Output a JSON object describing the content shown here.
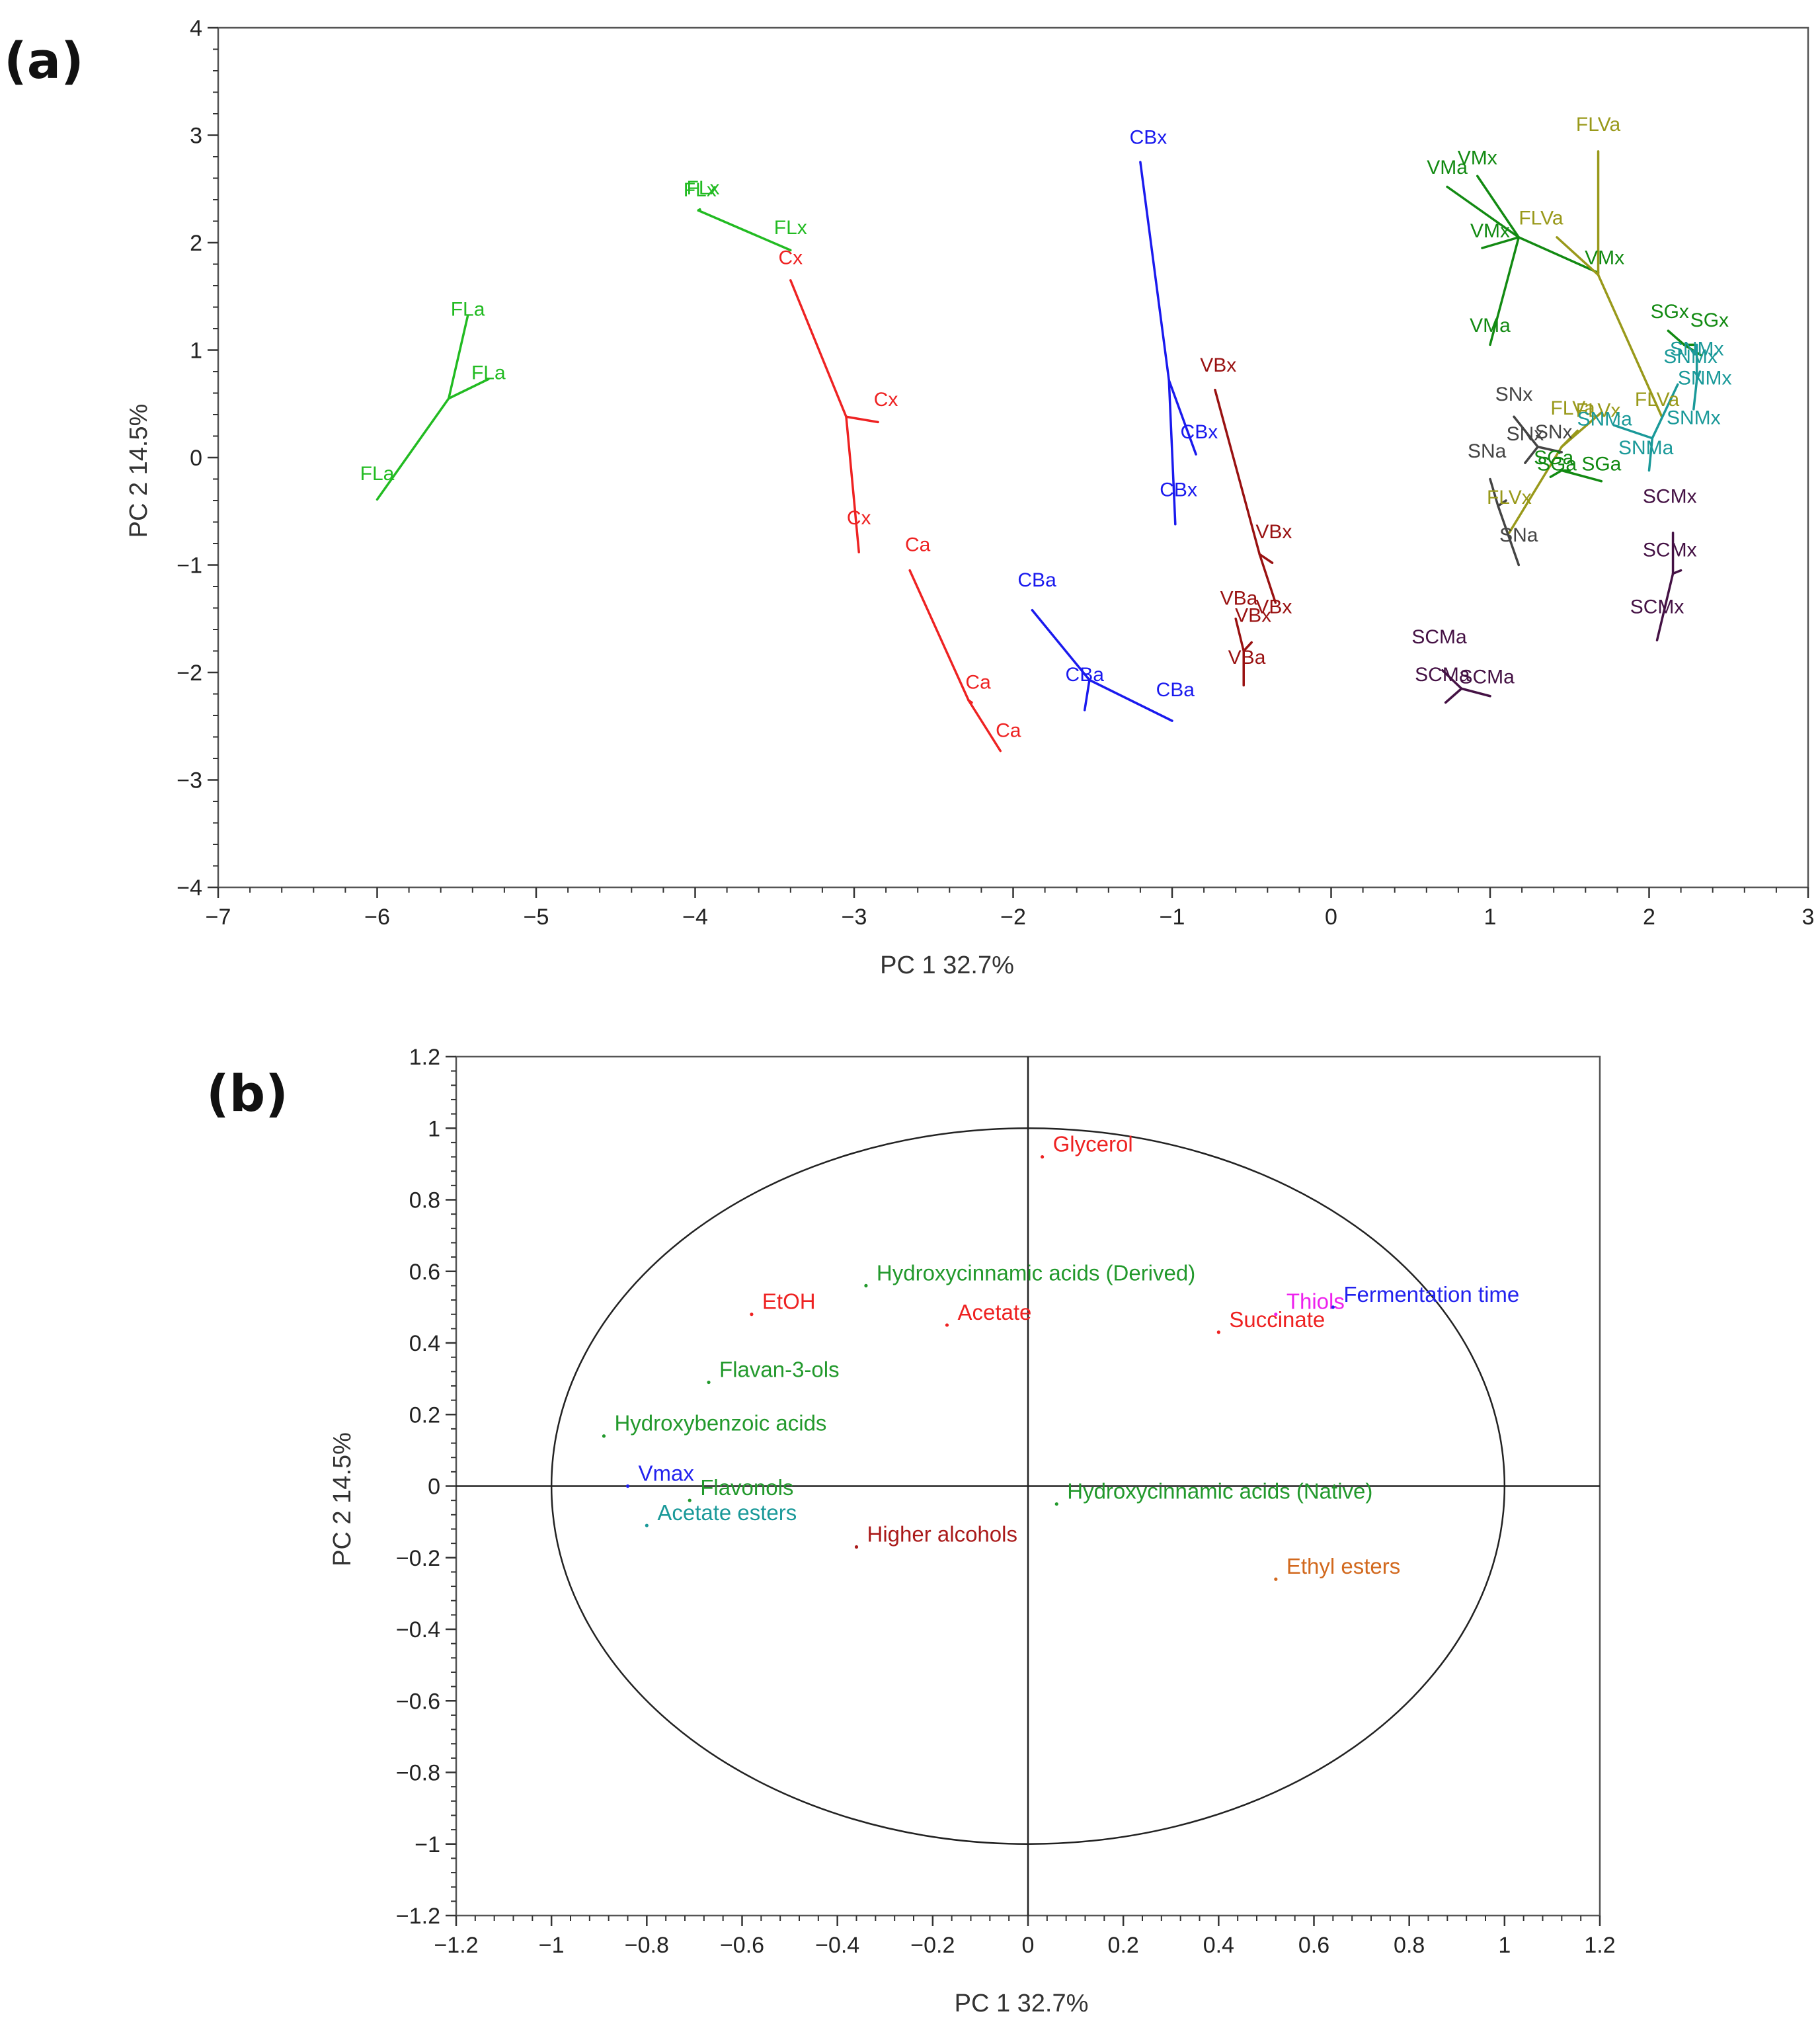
{
  "chart_data": [
    {
      "panel": "(a)",
      "type": "scatter",
      "title": "",
      "xlabel": "PC 1  32.7%",
      "ylabel": "PC 2  14.5%",
      "xlim": [
        -7,
        3
      ],
      "ylim": [
        -4,
        4
      ],
      "xticks": [
        -7,
        -6,
        -5,
        -4,
        -3,
        -2,
        -1,
        0,
        1,
        2,
        3
      ],
      "yticks": [
        -4,
        -3,
        -2,
        -1,
        0,
        1,
        2,
        3,
        4
      ],
      "groups": [
        {
          "color": "#22bb22",
          "center": [
            -5.55,
            0.55
          ],
          "points": [
            {
              "label": "FLa",
              "x": -5.43,
              "y": 1.32
            },
            {
              "label": "FLa",
              "x": -5.3,
              "y": 0.73
            },
            {
              "label": "FLa",
              "x": -6.0,
              "y": -0.39
            }
          ]
        },
        {
          "color": "#22bb22",
          "center": [
            -3.98,
            2.3
          ],
          "points": [
            {
              "label": "FLx",
              "x": -3.97,
              "y": 2.31
            },
            {
              "label": "FLx",
              "x": -3.97,
              "y": 2.3
            },
            {
              "label": "FLx",
              "x": -3.4,
              "y": 1.93
            }
          ]
        },
        {
          "color": "#ee2222",
          "center": [
            -3.05,
            0.38
          ],
          "points": [
            {
              "label": "Cx",
              "x": -3.4,
              "y": 1.65
            },
            {
              "label": "Cx",
              "x": -2.85,
              "y": 0.33
            },
            {
              "label": "Cx",
              "x": -2.97,
              "y": -0.88
            }
          ]
        },
        {
          "color": "#ee2222",
          "center": [
            -2.28,
            -2.26
          ],
          "points": [
            {
              "label": "Ca",
              "x": -2.65,
              "y": -1.05
            },
            {
              "label": "Ca",
              "x": -2.26,
              "y": -2.28
            },
            {
              "label": "Ca",
              "x": -2.08,
              "y": -2.73
            }
          ]
        },
        {
          "color": "#1a1aee",
          "center": [
            -1.02,
            0.72
          ],
          "points": [
            {
              "label": "CBx",
              "x": -1.2,
              "y": 2.75
            },
            {
              "label": "CBx",
              "x": -0.85,
              "y": 0.03
            },
            {
              "label": "CBx",
              "x": -0.98,
              "y": -0.62
            }
          ]
        },
        {
          "color": "#1a1aee",
          "center": [
            -1.52,
            -2.07
          ],
          "points": [
            {
              "label": "CBa",
              "x": -1.88,
              "y": -1.42
            },
            {
              "label": "CBa",
              "x": -1.55,
              "y": -2.35
            },
            {
              "label": "CBa",
              "x": -1.0,
              "y": -2.45
            }
          ]
        },
        {
          "color": "#991111",
          "center": [
            -0.45,
            -0.9
          ],
          "points": [
            {
              "label": "VBx",
              "x": -0.73,
              "y": 0.63
            },
            {
              "label": "VBx",
              "x": -0.37,
              "y": -0.98
            },
            {
              "label": "VBx",
              "x": -0.35,
              "y": -1.35
            }
          ]
        },
        {
          "color": "#991111",
          "center": [
            -0.55,
            -1.8
          ],
          "points": [
            {
              "label": "VBa",
              "x": -0.6,
              "y": -1.5
            },
            {
              "label": "VBa",
              "x": -0.5,
              "y": -1.72
            },
            {
              "label": "VBa",
              "x": -0.55,
              "y": -2.12
            }
          ]
        },
        {
          "color": "#128a12",
          "center": [
            1.18,
            2.05
          ],
          "points": [
            {
              "label": "VMa",
              "x": 0.73,
              "y": 2.52
            },
            {
              "label": "VMa",
              "x": 1.0,
              "y": 1.05
            },
            {
              "label": "VMx",
              "x": 0.95,
              "y": 1.95
            },
            {
              "label": "VMx",
              "x": 0.92,
              "y": 2.62
            },
            {
              "label": "VMx",
              "x": 1.68,
              "y": 1.72
            }
          ]
        },
        {
          "color": "#99991a",
          "center": [
            1.68,
            1.7
          ],
          "points": [
            {
              "label": "FLVa",
              "x": 1.68,
              "y": 2.85
            },
            {
              "label": "FLVa",
              "x": 1.42,
              "y": 2.05
            },
            {
              "label": "FLVa",
              "x": 2.08,
              "y": 0.38
            }
          ]
        },
        {
          "color": "#99991a",
          "center": [
            1.45,
            0.1
          ],
          "points": [
            {
              "label": "FLVx",
              "x": 1.55,
              "y": 0.25
            },
            {
              "label": "FLVx",
              "x": 1.7,
              "y": 0.42
            },
            {
              "label": "FLVx",
              "x": 1.12,
              "y": -0.7
            }
          ]
        },
        {
          "color": "#128a12",
          "center": [
            2.22,
            1.05
          ],
          "points": [
            {
              "label": "SGx",
              "x": 2.12,
              "y": 1.18
            },
            {
              "label": "SGx",
              "x": 2.28,
              "y": 1.05
            },
            {
              "label": "SGx",
              "x": 2.33,
              "y": 0.95
            }
          ]
        },
        {
          "color": "#128a12",
          "center": [
            1.45,
            -0.12
          ],
          "points": [
            {
              "label": "SGa",
              "x": 1.38,
              "y": -0.18
            },
            {
              "label": "SGa",
              "x": 1.5,
              "y": -0.12
            },
            {
              "label": "SGa",
              "x": 1.7,
              "y": -0.22
            }
          ]
        },
        {
          "color": "#1a9999",
          "center": [
            2.3,
            0.72
          ],
          "points": [
            {
              "label": "SNMx",
              "x": 2.3,
              "y": 1.05
            },
            {
              "label": "SNMx",
              "x": 2.32,
              "y": 0.8
            },
            {
              "label": "SNMx",
              "x": 2.28,
              "y": 0.45
            }
          ]
        },
        {
          "color": "#1a9999",
          "center": [
            2.02,
            0.18
          ],
          "points": [
            {
              "label": "SNMa",
              "x": 1.78,
              "y": 0.3
            },
            {
              "label": "SNMa",
              "x": 2.18,
              "y": 0.68
            },
            {
              "label": "SNMa",
              "x": 2.0,
              "y": -0.12
            }
          ]
        },
        {
          "color": "#444444",
          "center": [
            1.3,
            0.1
          ],
          "points": [
            {
              "label": "SNx",
              "x": 1.15,
              "y": 0.38
            },
            {
              "label": "SNx",
              "x": 1.22,
              "y": -0.05
            },
            {
              "label": "SNx",
              "x": 1.45,
              "y": 0.05
            }
          ]
        },
        {
          "color": "#444444",
          "center": [
            1.05,
            -0.45
          ],
          "points": [
            {
              "label": "SNa",
              "x": 1.0,
              "y": -0.2
            },
            {
              "label": "SNa",
              "x": 1.1,
              "y": -0.4
            },
            {
              "label": "SNa",
              "x": 1.18,
              "y": -1.0
            }
          ]
        },
        {
          "color": "#441144",
          "center": [
            2.15,
            -1.08
          ],
          "points": [
            {
              "label": "SCMx",
              "x": 2.15,
              "y": -0.7
            },
            {
              "label": "SCMx",
              "x": 2.2,
              "y": -1.05
            },
            {
              "label": "SCMx",
              "x": 2.05,
              "y": -1.7
            }
          ]
        },
        {
          "color": "#441144",
          "center": [
            0.82,
            -2.15
          ],
          "points": [
            {
              "label": "SCMa",
              "x": 0.7,
              "y": -1.98
            },
            {
              "label": "SCMa",
              "x": 0.72,
              "y": -2.28
            },
            {
              "label": "SCMa",
              "x": 1.0,
              "y": -2.22
            }
          ]
        }
      ],
      "labels": [
        {
          "text": "FLa",
          "x": -5.43,
          "y": 1.32,
          "color": "#22bb22"
        },
        {
          "text": "FLa",
          "x": -5.3,
          "y": 0.73,
          "color": "#22bb22"
        },
        {
          "text": "FLa",
          "x": -6.0,
          "y": -0.21,
          "color": "#22bb22"
        },
        {
          "text": "FLx",
          "x": -3.97,
          "y": 2.43,
          "color": "#22bb22"
        },
        {
          "text": "FLx",
          "x": -3.95,
          "y": 2.45,
          "color": "#22bb22"
        },
        {
          "text": "FLx",
          "x": -3.4,
          "y": 2.08,
          "color": "#22bb22"
        },
        {
          "text": "Cx",
          "x": -3.4,
          "y": 1.8,
          "color": "#ee2222"
        },
        {
          "text": "Cx",
          "x": -2.8,
          "y": 0.48,
          "color": "#ee2222"
        },
        {
          "text": "Cx",
          "x": -2.97,
          "y": -0.62,
          "color": "#ee2222"
        },
        {
          "text": "Ca",
          "x": -2.6,
          "y": -0.87,
          "color": "#ee2222"
        },
        {
          "text": "Ca",
          "x": -2.22,
          "y": -2.15,
          "color": "#ee2222"
        },
        {
          "text": "Ca",
          "x": -2.03,
          "y": -2.6,
          "color": "#ee2222"
        },
        {
          "text": "CBx",
          "x": -1.15,
          "y": 2.92,
          "color": "#1a1aee"
        },
        {
          "text": "CBx",
          "x": -0.83,
          "y": 0.18,
          "color": "#1a1aee"
        },
        {
          "text": "CBx",
          "x": -0.96,
          "y": -0.36,
          "color": "#1a1aee"
        },
        {
          "text": "CBa",
          "x": -1.85,
          "y": -1.2,
          "color": "#1a1aee"
        },
        {
          "text": "CBa",
          "x": -1.55,
          "y": -2.08,
          "color": "#1a1aee"
        },
        {
          "text": "CBa",
          "x": -0.98,
          "y": -2.22,
          "color": "#1a1aee"
        },
        {
          "text": "VBx",
          "x": -0.71,
          "y": 0.8,
          "color": "#991111"
        },
        {
          "text": "VBx",
          "x": -0.36,
          "y": -0.75,
          "color": "#991111"
        },
        {
          "text": "VBx",
          "x": -0.36,
          "y": -1.45,
          "color": "#991111"
        },
        {
          "text": "VBa",
          "x": -0.58,
          "y": -1.37,
          "color": "#991111"
        },
        {
          "text": "VBx",
          "x": -0.49,
          "y": -1.53,
          "color": "#991111"
        },
        {
          "text": "VBa",
          "x": -0.53,
          "y": -1.92,
          "color": "#991111"
        },
        {
          "text": "VMa",
          "x": 0.73,
          "y": 2.64,
          "color": "#128a12"
        },
        {
          "text": "VMx",
          "x": 0.92,
          "y": 2.73,
          "color": "#128a12"
        },
        {
          "text": "FLVa",
          "x": 1.68,
          "y": 3.04,
          "color": "#99991a"
        },
        {
          "text": "FLVa",
          "x": 1.32,
          "y": 2.17,
          "color": "#99991a"
        },
        {
          "text": "VMx",
          "x": 1.0,
          "y": 2.05,
          "color": "#128a12"
        },
        {
          "text": "VMx",
          "x": 1.72,
          "y": 1.8,
          "color": "#128a12"
        },
        {
          "text": "VMa",
          "x": 1.0,
          "y": 1.17,
          "color": "#128a12"
        },
        {
          "text": "SGx",
          "x": 2.13,
          "y": 1.3,
          "color": "#128a12"
        },
        {
          "text": "SGx",
          "x": 2.38,
          "y": 1.22,
          "color": "#128a12"
        },
        {
          "text": "SNMx",
          "x": 2.3,
          "y": 0.95,
          "color": "#1a9999"
        },
        {
          "text": "SNMx",
          "x": 2.26,
          "y": 0.88,
          "color": "#1a9999"
        },
        {
          "text": "SNMx",
          "x": 2.35,
          "y": 0.68,
          "color": "#1a9999"
        },
        {
          "text": "SNMx",
          "x": 2.28,
          "y": 0.31,
          "color": "#1a9999"
        },
        {
          "text": "SNx",
          "x": 1.15,
          "y": 0.53,
          "color": "#444444"
        },
        {
          "text": "FLVa",
          "x": 1.52,
          "y": 0.4,
          "color": "#99991a"
        },
        {
          "text": "FLVx",
          "x": 1.68,
          "y": 0.38,
          "color": "#99991a"
        },
        {
          "text": "FLVa",
          "x": 2.05,
          "y": 0.48,
          "color": "#99991a"
        },
        {
          "text": "SNMa",
          "x": 1.72,
          "y": 0.3,
          "color": "#1a9999"
        },
        {
          "text": "SNx",
          "x": 1.4,
          "y": 0.18,
          "color": "#444444"
        },
        {
          "text": "SNx",
          "x": 1.22,
          "y": 0.16,
          "color": "#444444"
        },
        {
          "text": "SNMa",
          "x": 1.98,
          "y": 0.03,
          "color": "#1a9999"
        },
        {
          "text": "SNa",
          "x": 0.98,
          "y": 0.0,
          "color": "#444444"
        },
        {
          "text": "SGa",
          "x": 1.4,
          "y": -0.06,
          "color": "#128a12"
        },
        {
          "text": "SGa",
          "x": 1.42,
          "y": -0.12,
          "color": "#128a12"
        },
        {
          "text": "SGa",
          "x": 1.7,
          "y": -0.12,
          "color": "#128a12"
        },
        {
          "text": "FLVx",
          "x": 1.12,
          "y": -0.43,
          "color": "#99991a"
        },
        {
          "text": "SNa",
          "x": 1.18,
          "y": -0.78,
          "color": "#444444"
        },
        {
          "text": "SCMx",
          "x": 2.13,
          "y": -0.42,
          "color": "#441144"
        },
        {
          "text": "SCMx",
          "x": 2.13,
          "y": -0.92,
          "color": "#441144"
        },
        {
          "text": "SCMx",
          "x": 2.05,
          "y": -1.45,
          "color": "#441144"
        },
        {
          "text": "SCMa",
          "x": 0.68,
          "y": -1.73,
          "color": "#441144"
        },
        {
          "text": "SCMa",
          "x": 0.7,
          "y": -2.08,
          "color": "#441144"
        },
        {
          "text": "SCMa",
          "x": 0.98,
          "y": -2.1,
          "color": "#441144"
        }
      ]
    },
    {
      "panel": "(b)",
      "type": "scatter",
      "title": "",
      "xlabel": "PC 1  32.7%",
      "ylabel": "PC 2  14.5%",
      "xlim": [
        -1.2,
        1.2
      ],
      "ylim": [
        -1.2,
        1.2
      ],
      "xticks": [
        -1.2,
        -1,
        -0.8,
        -0.6,
        -0.4,
        -0.2,
        0,
        0.2,
        0.4,
        0.6,
        0.8,
        1,
        1.2
      ],
      "yticks": [
        -1.2,
        -1,
        -0.8,
        -0.6,
        -0.4,
        -0.2,
        0,
        0.2,
        0.4,
        0.6,
        0.8,
        1,
        1.2
      ],
      "circle_radius": 1,
      "points": [
        {
          "label": "Glycerol",
          "x": 0.03,
          "y": 0.92,
          "color": "#ee2222"
        },
        {
          "label": "Hydroxycinnamic acids (Derived)",
          "x": -0.34,
          "y": 0.56,
          "color": "#22992c"
        },
        {
          "label": "EtOH",
          "x": -0.58,
          "y": 0.48,
          "color": "#ee2222"
        },
        {
          "label": "Acetate",
          "x": -0.17,
          "y": 0.45,
          "color": "#ee2222"
        },
        {
          "label": "Thiols",
          "x": 0.52,
          "y": 0.48,
          "color": "#ee22ee"
        },
        {
          "label": "Fermentation time",
          "x": 0.64,
          "y": 0.5,
          "color": "#2222ee"
        },
        {
          "label": "Succinate",
          "x": 0.4,
          "y": 0.43,
          "color": "#ee2222"
        },
        {
          "label": "Flavan-3-ols",
          "x": -0.67,
          "y": 0.29,
          "color": "#22992c"
        },
        {
          "label": "Hydroxybenzoic acids",
          "x": -0.89,
          "y": 0.14,
          "color": "#22992c"
        },
        {
          "label": "Vmax",
          "x": -0.84,
          "y": 0.0,
          "color": "#2222ee"
        },
        {
          "label": "Flavonols",
          "x": -0.71,
          "y": -0.04,
          "color": "#22992c"
        },
        {
          "label": "Hydroxycinnamic acids (Native)",
          "x": 0.06,
          "y": -0.05,
          "color": "#22992c"
        },
        {
          "label": "Acetate esters",
          "x": -0.8,
          "y": -0.11,
          "color": "#1a9999"
        },
        {
          "label": "Higher alcohols",
          "x": -0.36,
          "y": -0.17,
          "color": "#aa1a1a"
        },
        {
          "label": "Ethyl esters",
          "x": 0.52,
          "y": -0.26,
          "color": "#d2691e"
        }
      ]
    }
  ]
}
